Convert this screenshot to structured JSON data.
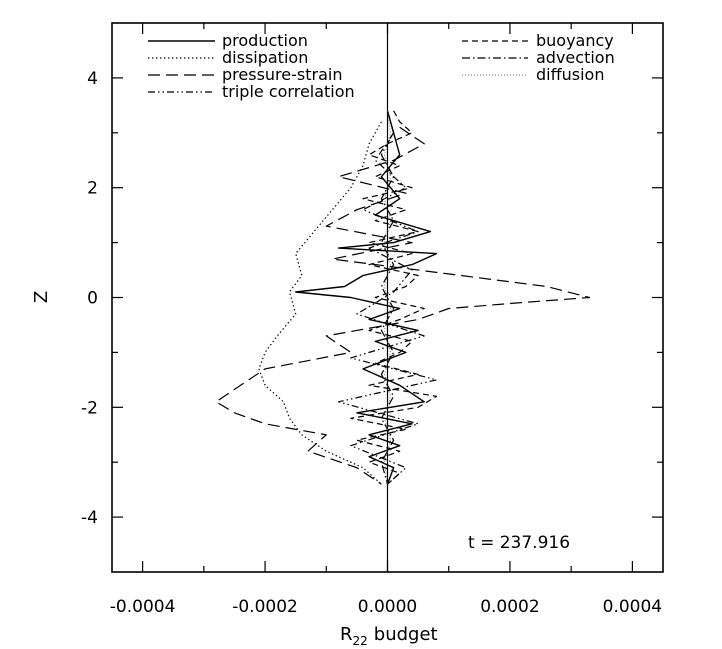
{
  "chart_data": {
    "type": "line",
    "title": "",
    "xlabel": "R",
    "xlabel_subscript": "22",
    "xlabel_suffix": "budget",
    "ylabel": "Z",
    "xlim": [
      -0.00045,
      0.00045
    ],
    "ylim": [
      -5,
      5
    ],
    "xticks": [
      -0.0004,
      -0.0002,
      0.0,
      0.0002,
      0.0004
    ],
    "xtick_labels": [
      "-0.0004",
      "-0.0002",
      "0.0000",
      "0.0002",
      "0.0004"
    ],
    "yticks": [
      -4,
      -2,
      0,
      2,
      4
    ],
    "ytick_labels": [
      "-4",
      "-2",
      "0",
      "2",
      "4"
    ],
    "grid": false,
    "annotation": "t = 237.916",
    "legend_position": "top",
    "series": [
      {
        "name": "production",
        "style": "solid",
        "z": [
          3.4,
          3.0,
          2.6,
          2.2,
          1.8,
          1.5,
          1.2,
          1.0,
          0.9,
          0.8,
          0.6,
          0.4,
          0.2,
          0.1,
          0.0,
          -0.2,
          -0.4,
          -0.6,
          -0.8,
          -1.0,
          -1.3,
          -1.6,
          -1.9,
          -2.1,
          -2.3,
          -2.5,
          -2.7,
          -2.9,
          -3.1,
          -3.4
        ],
        "x": [
          0.0,
          1e-05,
          2e-05,
          -1e-05,
          2e-05,
          -2e-05,
          7e-05,
          1e-05,
          -8e-05,
          8e-05,
          4e-05,
          -4e-05,
          -7e-05,
          -0.00015,
          -6e-05,
          2e-05,
          -3e-05,
          5e-05,
          -2e-05,
          3e-05,
          -4e-05,
          2e-05,
          6e-05,
          -5e-05,
          4e-05,
          -3e-05,
          2e-05,
          -3e-05,
          1e-05,
          0.0
        ]
      },
      {
        "name": "dissipation",
        "style": "dotted",
        "z": [
          3.2,
          2.8,
          2.4,
          2.0,
          1.6,
          1.2,
          0.8,
          0.4,
          0.1,
          -0.3,
          -0.7,
          -1.0,
          -1.3,
          -1.6,
          -1.9,
          -2.2,
          -2.5,
          -2.8,
          -3.1,
          -3.4
        ],
        "x": [
          -1e-05,
          -3e-05,
          -4e-05,
          -6e-05,
          -9e-05,
          -0.00012,
          -0.00015,
          -0.00014,
          -0.00016,
          -0.00015,
          -0.00018,
          -0.0002,
          -0.00021,
          -0.0002,
          -0.00017,
          -0.00016,
          -0.00014,
          -0.0001,
          -4e-05,
          -1e-05
        ]
      },
      {
        "name": "pressure-strain",
        "style": "longdash",
        "z": [
          3.1,
          2.8,
          2.5,
          2.2,
          1.9,
          1.6,
          1.3,
          1.0,
          0.7,
          0.4,
          0.2,
          0.0,
          -0.1,
          -0.2,
          -0.4,
          -0.7,
          -1.0,
          -1.3,
          -1.6,
          -1.9,
          -2.1,
          -2.3,
          -2.5,
          -2.8,
          -3.1,
          -3.4
        ],
        "x": [
          2e-05,
          6e-05,
          1e-05,
          -8e-05,
          3e-05,
          -5e-05,
          -0.0001,
          4e-05,
          -9e-05,
          0.00012,
          0.00026,
          0.00033,
          0.00021,
          0.0001,
          5e-05,
          -0.0001,
          -6e-05,
          -0.0002,
          -0.00024,
          -0.00028,
          -0.00025,
          -0.0002,
          -0.0001,
          -0.00013,
          -5e-05,
          -1e-05
        ]
      },
      {
        "name": "triple correlation",
        "style": "dashdotdot",
        "z": [
          3.0,
          2.5,
          2.0,
          1.6,
          1.2,
          0.9,
          0.5,
          0.1,
          -0.3,
          -0.7,
          -1.1,
          -1.5,
          -1.9,
          -2.3,
          -2.7,
          -3.1,
          -3.4
        ],
        "x": [
          1e-05,
          -2e-05,
          3e-05,
          -4e-05,
          5e-05,
          -3e-05,
          4e-05,
          1e-05,
          -5e-05,
          6e-05,
          -6e-05,
          8e-05,
          -8e-05,
          5e-05,
          -6e-05,
          3e-05,
          0.0
        ]
      },
      {
        "name": "buoyancy",
        "style": "dashed",
        "z": [
          3.4,
          3.2,
          3.0,
          2.8,
          2.6,
          2.4,
          2.2,
          2.0,
          1.8,
          1.6,
          1.4,
          1.2,
          1.0,
          0.8,
          0.6,
          0.4,
          0.2,
          0.0,
          -0.2,
          -0.4,
          -0.6,
          -0.8,
          -1.0,
          -1.2,
          -1.4,
          -1.6,
          -1.8,
          -2.0,
          -2.2,
          -2.4,
          -2.6,
          -2.8,
          -3.0,
          -3.2,
          -3.4
        ],
        "x": [
          1e-05,
          2e-05,
          4e-05,
          0.0,
          -3e-05,
          2e-05,
          -2e-05,
          4e-05,
          -4e-05,
          3e-05,
          -2e-05,
          5e-05,
          -3e-05,
          4e-05,
          -3e-05,
          5e-05,
          3e-05,
          -2e-05,
          6e-05,
          2e-05,
          -3e-05,
          4e-05,
          2e-05,
          -2e-05,
          5e-05,
          -3e-05,
          8e-05,
          5e-05,
          -6e-05,
          3e-05,
          -5e-05,
          2e-05,
          -3e-05,
          2e-05,
          0.0
        ]
      },
      {
        "name": "advection",
        "style": "dashdot",
        "z": [
          3.4,
          3.0,
          2.6,
          2.2,
          1.8,
          1.4,
          1.0,
          0.6,
          0.2,
          -0.2,
          -0.6,
          -1.0,
          -1.4,
          -1.8,
          -2.2,
          -2.6,
          -3.0,
          -3.4
        ],
        "x": [
          0.0,
          1e-05,
          -1e-05,
          1e-05,
          -1e-05,
          1e-05,
          -1e-05,
          1e-05,
          -1e-05,
          1e-05,
          -1e-05,
          1e-05,
          -1e-05,
          1e-05,
          -1e-05,
          1e-05,
          -1e-05,
          0.0
        ]
      },
      {
        "name": "diffusion",
        "style": "finedot",
        "z": [
          3.4,
          3.0,
          2.6,
          2.2,
          1.8,
          1.4,
          1.0,
          0.6,
          0.2,
          -0.2,
          -0.6,
          -1.0,
          -1.4,
          -1.8,
          -2.2,
          -2.6,
          -3.0,
          -3.4
        ],
        "x": [
          0.0,
          5e-06,
          -5e-06,
          5e-06,
          -5e-06,
          5e-06,
          -5e-06,
          5e-06,
          -5e-06,
          5e-06,
          -5e-06,
          5e-06,
          -5e-06,
          5e-06,
          -5e-06,
          5e-06,
          -5e-06,
          0.0
        ]
      }
    ]
  }
}
